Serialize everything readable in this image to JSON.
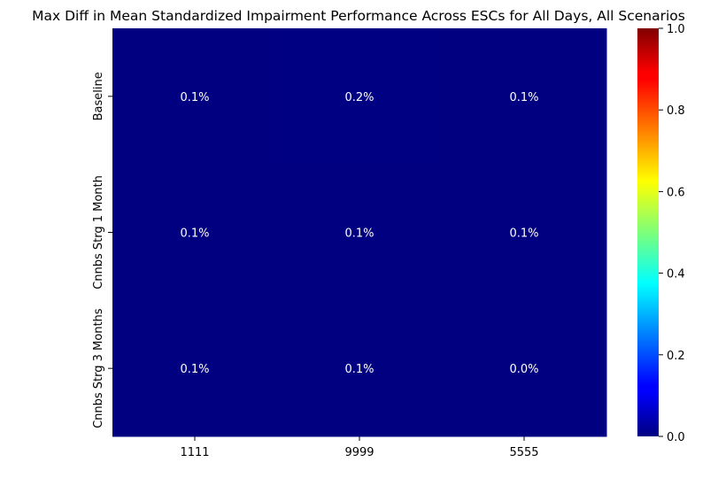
{
  "chart_data": {
    "type": "heatmap",
    "title": "Max Diff in Mean Standardized Impairment Performance Across ESCs for All Days, All Scenarios",
    "xlabel": "",
    "ylabel": "",
    "x_categories": [
      "1111",
      "9999",
      "5555"
    ],
    "y_categories": [
      "Baseline",
      "Cnnbs Strg 1 Month",
      "Cnnbs Strg 3 Months"
    ],
    "values": [
      [
        0.001,
        0.002,
        0.001
      ],
      [
        0.001,
        0.001,
        0.001
      ],
      [
        0.001,
        0.001,
        0.0
      ]
    ],
    "cell_labels": [
      [
        "0.1%",
        "0.2%",
        "0.1%"
      ],
      [
        "0.1%",
        "0.1%",
        "0.1%"
      ],
      [
        "0.1%",
        "0.1%",
        "0.0%"
      ]
    ],
    "colormap": "jet",
    "colorbar": {
      "range": [
        0,
        1
      ],
      "ticks": [
        0.0,
        0.2,
        0.4,
        0.6,
        0.8,
        1.0
      ],
      "tick_labels": [
        "0.0",
        "0.2",
        "0.4",
        "0.6",
        "0.8",
        "1.0"
      ]
    },
    "colors": {
      "cell_fill": "#000080",
      "annotation_text": "#ffffff",
      "axis_text": "#000000"
    }
  }
}
